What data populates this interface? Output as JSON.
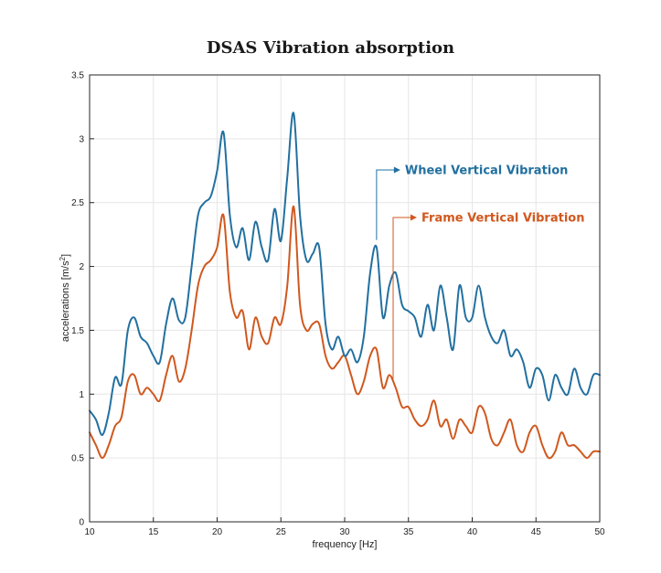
{
  "chart_data": {
    "type": "line",
    "title": "DSAS Vibration absorption",
    "xlabel": "frequency [Hz]",
    "ylabel": "accelerations [m/s",
    "ylabel_sup": "2",
    "ylabel_close": "]",
    "xlim": [
      10,
      50
    ],
    "ylim": [
      0,
      3.5
    ],
    "xticks": [
      "10",
      "15",
      "20",
      "25",
      "30",
      "35",
      "40",
      "45",
      "50"
    ],
    "yticks": [
      "0",
      "0.5",
      "1",
      "1.5",
      "2",
      "2.5",
      "3",
      "3.5"
    ],
    "grid": true,
    "colors": {
      "wheel": "#2270a0",
      "frame": "#d0581e"
    },
    "series": [
      {
        "name": "Wheel Vertical Vibration",
        "x": [
          10,
          10.5,
          11,
          11.5,
          12,
          12.5,
          13,
          13.5,
          14,
          14.5,
          15,
          15.5,
          16,
          16.5,
          17,
          17.5,
          18,
          18.5,
          19,
          19.5,
          20,
          20.5,
          21,
          21.5,
          22,
          22.5,
          23,
          23.5,
          24,
          24.5,
          25,
          25.5,
          26,
          26.5,
          27,
          27.5,
          28,
          28.5,
          29,
          29.5,
          30,
          30.5,
          31,
          31.5,
          32,
          32.5,
          33,
          33.5,
          34,
          34.5,
          35,
          35.5,
          36,
          36.5,
          37,
          37.5,
          38,
          38.5,
          39,
          39.5,
          40,
          40.5,
          41,
          41.5,
          42,
          42.5,
          43,
          43.5,
          44,
          44.5,
          45,
          45.5,
          46,
          46.5,
          47,
          47.5,
          48,
          48.5,
          49,
          49.5,
          50
        ],
        "values": [
          0.87,
          0.8,
          0.68,
          0.85,
          1.13,
          1.08,
          1.5,
          1.6,
          1.45,
          1.4,
          1.3,
          1.25,
          1.55,
          1.75,
          1.58,
          1.6,
          2.0,
          2.4,
          2.5,
          2.55,
          2.75,
          3.05,
          2.4,
          2.15,
          2.3,
          2.05,
          2.35,
          2.15,
          2.05,
          2.45,
          2.2,
          2.7,
          3.2,
          2.4,
          2.05,
          2.1,
          2.15,
          1.55,
          1.35,
          1.45,
          1.3,
          1.35,
          1.25,
          1.45,
          1.95,
          2.15,
          1.6,
          1.85,
          1.95,
          1.7,
          1.65,
          1.6,
          1.45,
          1.7,
          1.5,
          1.85,
          1.6,
          1.35,
          1.85,
          1.6,
          1.6,
          1.85,
          1.6,
          1.45,
          1.4,
          1.5,
          1.3,
          1.35,
          1.25,
          1.05,
          1.2,
          1.15,
          0.95,
          1.15,
          1.05,
          1.0,
          1.2,
          1.05,
          1.0,
          1.15,
          1.15
        ]
      },
      {
        "name": "Frame Vertical Vibration",
        "x": [
          10,
          10.5,
          11,
          11.5,
          12,
          12.5,
          13,
          13.5,
          14,
          14.5,
          15,
          15.5,
          16,
          16.5,
          17,
          17.5,
          18,
          18.5,
          19,
          19.5,
          20,
          20.5,
          21,
          21.5,
          22,
          22.5,
          23,
          23.5,
          24,
          24.5,
          25,
          25.5,
          26,
          26.5,
          27,
          27.5,
          28,
          28.5,
          29,
          29.5,
          30,
          30.5,
          31,
          31.5,
          32,
          32.5,
          33,
          33.5,
          34,
          34.5,
          35,
          35.5,
          36,
          36.5,
          37,
          37.5,
          38,
          38.5,
          39,
          39.5,
          40,
          40.5,
          41,
          41.5,
          42,
          42.5,
          43,
          43.5,
          44,
          44.5,
          45,
          45.5,
          46,
          46.5,
          47,
          47.5,
          48,
          48.5,
          49,
          49.5,
          50
        ],
        "values": [
          0.7,
          0.6,
          0.5,
          0.6,
          0.75,
          0.82,
          1.1,
          1.15,
          1.0,
          1.05,
          1.0,
          0.95,
          1.15,
          1.3,
          1.1,
          1.2,
          1.5,
          1.85,
          2.0,
          2.05,
          2.15,
          2.4,
          1.8,
          1.6,
          1.65,
          1.35,
          1.6,
          1.45,
          1.4,
          1.6,
          1.55,
          1.85,
          2.47,
          1.7,
          1.5,
          1.55,
          1.55,
          1.3,
          1.2,
          1.25,
          1.3,
          1.15,
          1.0,
          1.1,
          1.3,
          1.35,
          1.05,
          1.15,
          1.05,
          0.9,
          0.9,
          0.8,
          0.75,
          0.8,
          0.95,
          0.75,
          0.8,
          0.65,
          0.8,
          0.75,
          0.7,
          0.9,
          0.85,
          0.65,
          0.6,
          0.7,
          0.8,
          0.6,
          0.55,
          0.7,
          0.75,
          0.6,
          0.5,
          0.55,
          0.7,
          0.6,
          0.6,
          0.55,
          0.5,
          0.55,
          0.55
        ]
      }
    ],
    "annotations": [
      {
        "text": "Wheel Vertical Vibration",
        "series": 0,
        "anchor_x": 32.5
      },
      {
        "text": "Frame Vertical Vibration",
        "series": 1,
        "anchor_x": 33.8
      }
    ]
  }
}
